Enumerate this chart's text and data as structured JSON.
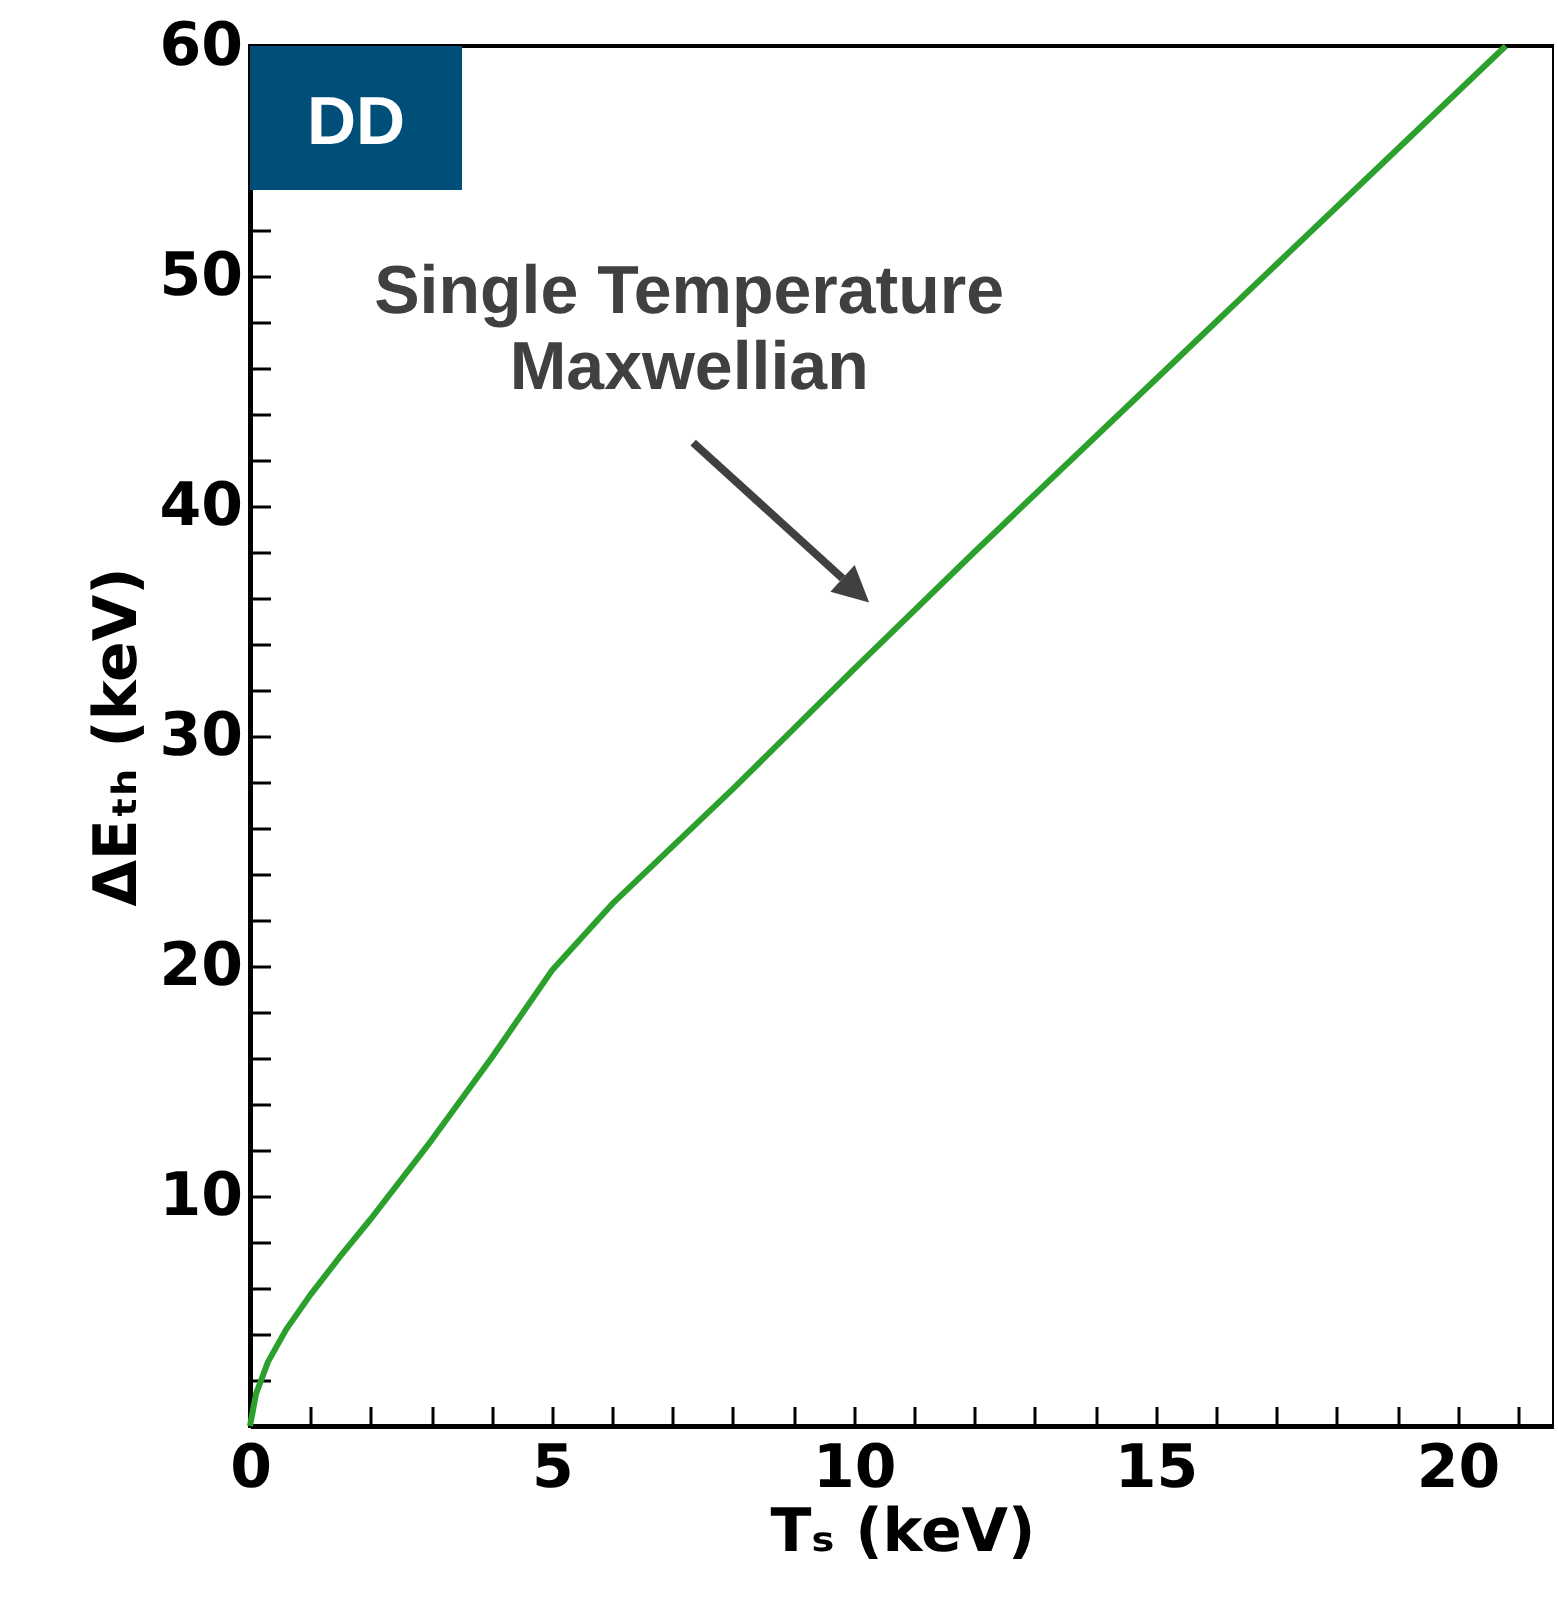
{
  "chart_data": {
    "type": "line",
    "xlabel": "Tₛ (keV)",
    "ylabel": "ΔEₜₕ (keV)",
    "x": [
      0,
      0.1,
      0.3,
      0.6,
      1,
      1.5,
      2,
      3,
      4,
      5,
      6,
      7,
      8,
      10,
      12,
      14,
      16,
      18,
      20,
      20.8
    ],
    "series": [
      {
        "color": "#2ca02c",
        "values": [
          0,
          1.4,
          2.8,
          4.2,
          5.7,
          7.4,
          9.0,
          12.4,
          16.0,
          19.8,
          22.7,
          25.2,
          27.7,
          32.9,
          38.0,
          43.0,
          48.0,
          53.0,
          58.0,
          60
        ]
      }
    ],
    "xlim": [
      0,
      21.6
    ],
    "ylim": [
      0,
      60
    ],
    "xticks": [
      0,
      {
        "value": 1,
        "label": null
      },
      {
        "value": 2,
        "label": null
      },
      {
        "value": 3,
        "label": null
      },
      {
        "value": 4,
        "label": null
      },
      5,
      {
        "value": 6,
        "label": null
      },
      {
        "value": 7,
        "label": null
      },
      {
        "value": 8,
        "label": null
      },
      {
        "value": 9,
        "label": null
      },
      10,
      {
        "value": 11,
        "label": null
      },
      {
        "value": 12,
        "label": null
      },
      {
        "value": 13,
        "label": null
      },
      {
        "value": 14,
        "label": null
      },
      15,
      {
        "value": 16,
        "label": null
      },
      {
        "value": 17,
        "label": null
      },
      {
        "value": 18,
        "label": null
      },
      {
        "value": 19,
        "label": null
      },
      20,
      {
        "value": 21,
        "label": null
      }
    ],
    "yticks": [
      {
        "value": 2,
        "label": null
      },
      {
        "value": 4,
        "label": null
      },
      {
        "value": 6,
        "label": null
      },
      {
        "value": 8,
        "label": null
      },
      10,
      {
        "value": 12,
        "label": null
      },
      {
        "value": 14,
        "label": null
      },
      {
        "value": 16,
        "label": null
      },
      {
        "value": 18,
        "label": null
      },
      20,
      {
        "value": 22,
        "label": null
      },
      {
        "value": 24,
        "label": null
      },
      {
        "value": 26,
        "label": null
      },
      {
        "value": 28,
        "label": null
      },
      30,
      {
        "value": 32,
        "label": null
      },
      {
        "value": 34,
        "label": null
      },
      {
        "value": 36,
        "label": null
      },
      {
        "value": 38,
        "label": null
      },
      40,
      {
        "value": 42,
        "label": null
      },
      {
        "value": 44,
        "label": null
      },
      {
        "value": 46,
        "label": null
      },
      {
        "value": 48,
        "label": null
      },
      50,
      {
        "value": 52,
        "label": null
      },
      {
        "value": 54,
        "label": null
      },
      {
        "value": 56,
        "label": null
      },
      {
        "value": 58,
        "label": null
      },
      60
    ],
    "grid": false,
    "marker": "none",
    "line_style": "solid",
    "annotations": [
      "DD",
      {
        "text": "Single Temperature Maxwellian",
        "x": 11.25,
        "y": 35.8
      }
    ]
  }
}
